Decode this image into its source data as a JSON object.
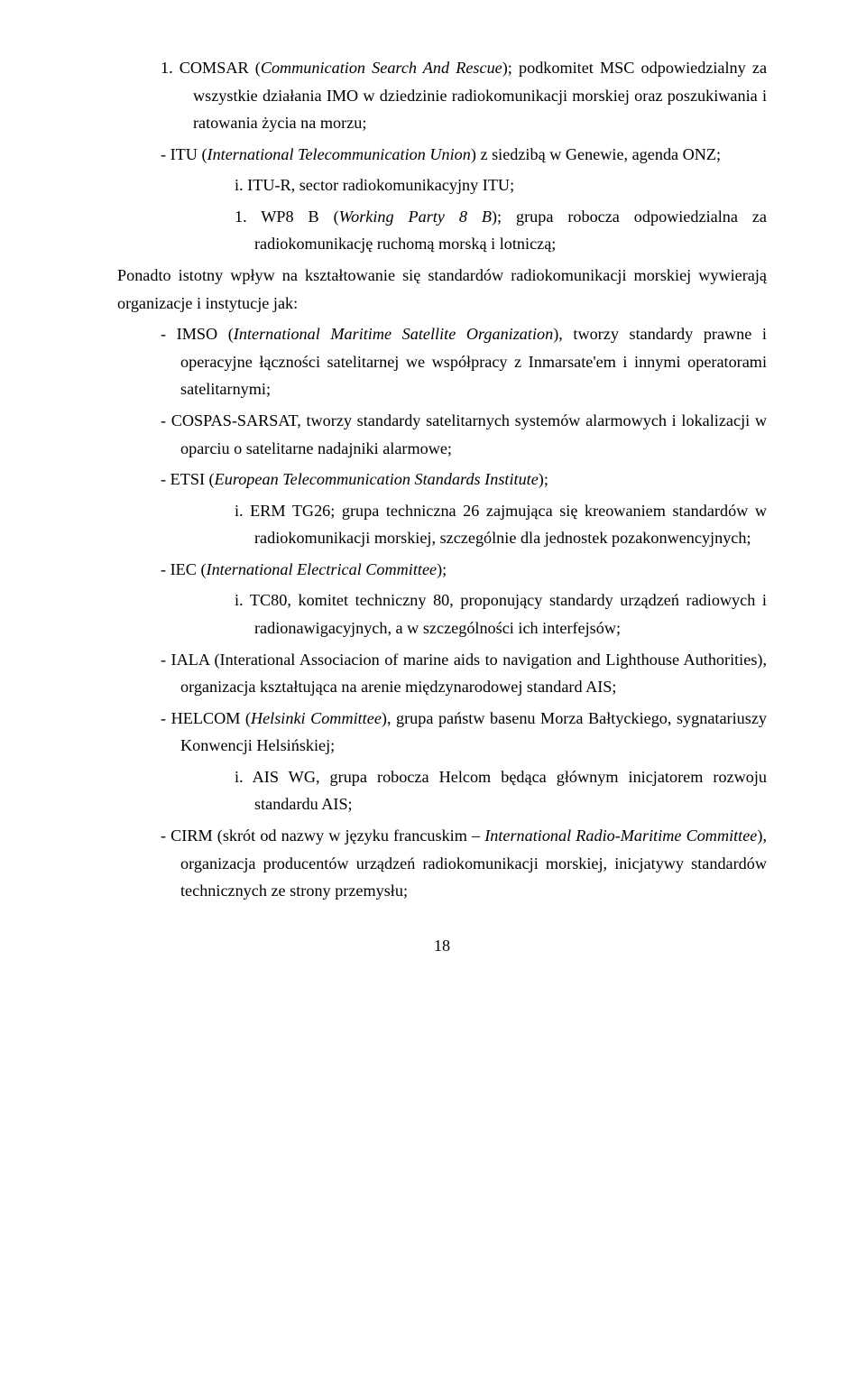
{
  "blocks": {
    "b1": "1. COMSAR (",
    "b1i": "Communication Search And Rescue",
    "b1b": "); podkomitet MSC odpowiedzialny za wszystkie działania IMO w dziedzinie radiokomunikacji morskiej oraz poszukiwania i ratowania życia na morzu;",
    "b2": "- ITU (",
    "b2i": "International Telecommunication Union",
    "b2b": ") z siedzibą w Genewie, agenda ONZ;",
    "b3": "i. ITU-R, sector radiokomunikacyjny ITU;",
    "b4": "1. WP8 B (",
    "b4i": "Working Party 8 B",
    "b4b": "); grupa robocza odpowiedzialna za radiokomunikację ruchomą morską i lotniczą;",
    "b5": "Ponadto istotny wpływ na kształtowanie się standardów radiokomunikacji morskiej wywierają organizacje i instytucje jak:",
    "b6": "- IMSO (",
    "b6i": "International Maritime Satellite Organization",
    "b6b": "), tworzy standardy prawne i operacyjne łączności satelitarnej we współpracy z Inmarsate'em i innymi operatorami satelitarnymi;",
    "b7": "- COSPAS-SARSAT, tworzy standardy satelitarnych systemów alarmowych i lokalizacji w oparciu o satelitarne nadajniki alarmowe;",
    "b8": "- ETSI (",
    "b8i": "European Telecommunication Standards Institute",
    "b8b": ");",
    "b9": "i. ERM TG26; grupa techniczna 26 zajmująca się kreowaniem standardów w radiokomunikacji morskiej, szczególnie dla jednostek pozakonwencyjnych;",
    "b10": "- IEC (",
    "b10i": "International Electrical Committee",
    "b10b": ");",
    "b11": "i. TC80, komitet techniczny 80, proponujący standardy urządzeń radiowych i radionawigacyjnych, a w szczególności ich interfejsów;",
    "b12": "- IALA (Interational Associacion of marine aids to navigation and Lighthouse Authorities), organizacja kształtująca na arenie międzynarodowej standard AIS;",
    "b13": "- HELCOM (",
    "b13i": "Helsinki Committee",
    "b13b": "), grupa państw basenu Morza Bałtyckiego, sygnatariuszy Konwencji Helsińskiej;",
    "b14": "i. AIS WG, grupa robocza Helcom będąca głównym inicjatorem rozwoju standardu AIS;",
    "b15": "- CIRM (skrót od nazwy w języku francuskim – ",
    "b15i": "International Radio-Maritime Committee",
    "b15b": "), organizacja producentów urządzeń radiokomunikacji morskiej, inicjatywy standardów technicznych ze strony przemysłu;"
  },
  "page_number": "18",
  "typography": {
    "font_family": "Times New Roman",
    "font_size_pt": 12,
    "line_height": 1.68,
    "text_color": "#000000",
    "background_color": "#ffffff",
    "alignment": "justify"
  }
}
